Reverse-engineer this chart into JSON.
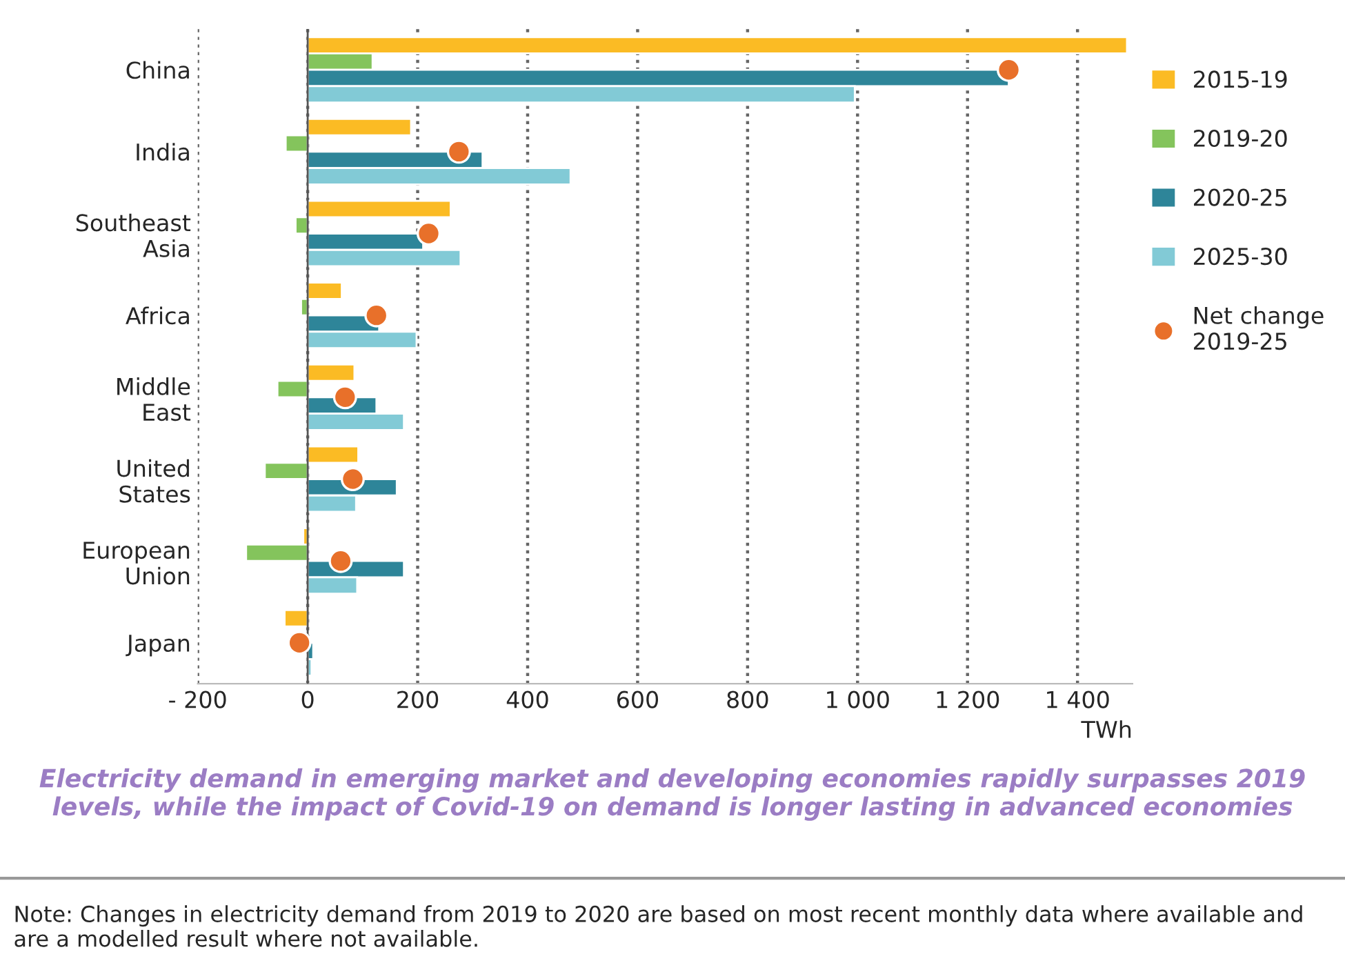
{
  "chart_data": {
    "type": "bar",
    "orientation": "horizontal",
    "title": "Electricity demand in emerging market and developing economies rapidly surpasses 2019 levels, while the impact of Covid-19 on demand is longer lasting in advanced economies",
    "xlabel": "TWh",
    "annotations": [
      "Note: Changes in electricity demand from 2019 to 2020 are based on most recent monthly data where available and are a modelled result where not available."
    ],
    "categories": [
      "China",
      "India",
      "Southeast\nAsia",
      "Africa",
      "Middle\nEast",
      "United\nStates",
      "European\nUnion",
      "Japan"
    ],
    "series": [
      {
        "name": "2015-19",
        "color": "#fbbb24",
        "values": [
          1490,
          188,
          260,
          62,
          85,
          92,
          -8,
          -42
        ]
      },
      {
        "name": "2019-20",
        "color": "#84c45c",
        "values": [
          118,
          -40,
          -22,
          -12,
          -55,
          -78,
          -112,
          null
        ]
      },
      {
        "name": "2020-25",
        "color": "#2e8599",
        "values": [
          1275,
          318,
          210,
          130,
          125,
          162,
          175,
          10
        ]
      },
      {
        "name": "2025-30",
        "color": "#82cad6",
        "values": [
          995,
          478,
          278,
          198,
          175,
          88,
          90,
          7
        ]
      },
      {
        "name": "Net change\n2019-25",
        "type": "scatter",
        "color": "#e8702a",
        "marker": "circle",
        "values": [
          1275,
          275,
          220,
          125,
          68,
          82,
          60,
          -15
        ]
      }
    ],
    "xlim": [
      -200,
      1500
    ],
    "xticks": [
      {
        "value": -200,
        "label": "- 200"
      },
      0,
      200,
      400,
      600,
      800,
      {
        "value": 1000,
        "label": "1 000"
      },
      {
        "value": 1200,
        "label": "1 200"
      },
      {
        "value": 1400,
        "label": "1 400"
      }
    ],
    "grid": "x",
    "legend": "right"
  }
}
